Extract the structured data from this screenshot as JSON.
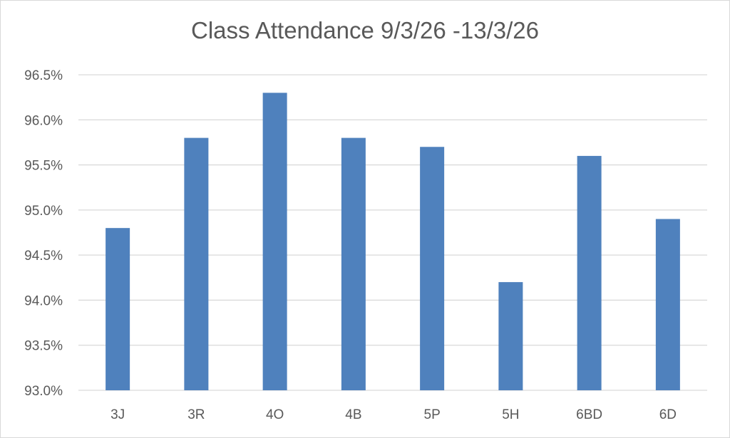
{
  "chart_data": {
    "type": "bar",
    "title": "Class Attendance 9/3/26 -13/3/26",
    "xlabel": "",
    "ylabel": "",
    "categories": [
      "3J",
      "3R",
      "4O",
      "4B",
      "5P",
      "5H",
      "6BD",
      "6D"
    ],
    "values": [
      94.8,
      95.8,
      96.3,
      95.8,
      95.7,
      94.2,
      95.6,
      94.9
    ],
    "ylim": [
      93.0,
      96.5
    ],
    "yticks": [
      "93.0%",
      "93.5%",
      "94.0%",
      "94.5%",
      "95.0%",
      "95.5%",
      "96.0%",
      "96.5%"
    ],
    "grid": true,
    "legend": "none",
    "bar_color": "#4f81bd",
    "grid_color": "#d9d9d9"
  }
}
